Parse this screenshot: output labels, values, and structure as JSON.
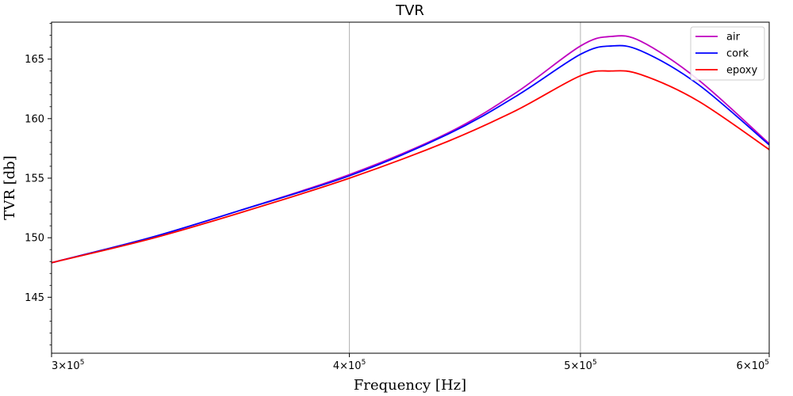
{
  "chart_data": {
    "type": "line",
    "title": "TVR",
    "xlabel": "Frequency [Hz]",
    "ylabel": "TVR [db]",
    "x_scale": "log",
    "xlim": [
      300000,
      600000
    ],
    "ylim": [
      140.3,
      168.1
    ],
    "xticks": [
      {
        "value": 300000,
        "mantissa": "3",
        "exp": "5"
      },
      {
        "value": 400000,
        "mantissa": "4",
        "exp": "5"
      },
      {
        "value": 500000,
        "mantissa": "5",
        "exp": "5"
      },
      {
        "value": 600000,
        "mantissa": "6",
        "exp": "5"
      }
    ],
    "yticks": [
      145,
      150,
      155,
      160,
      165
    ],
    "grid": "x-major",
    "legend": "top-right",
    "x": [
      300000,
      330000,
      360000,
      400000,
      440000,
      470000,
      500000,
      515000,
      530000,
      560000,
      600000
    ],
    "series": [
      {
        "name": "air",
        "color": "#bf00bf",
        "values": [
          147.9,
          150.0,
          152.3,
          155.3,
          158.8,
          162.2,
          166.1,
          166.9,
          166.5,
          163.3,
          157.9
        ]
      },
      {
        "name": "cork",
        "color": "#0000ff",
        "values": [
          147.9,
          150.0,
          152.3,
          155.2,
          158.7,
          161.9,
          165.4,
          166.1,
          165.7,
          162.9,
          157.8
        ]
      },
      {
        "name": "epoxy",
        "color": "#ff0000",
        "values": [
          147.9,
          149.9,
          152.1,
          155.0,
          158.1,
          160.7,
          163.6,
          164.0,
          163.7,
          161.5,
          157.4
        ]
      }
    ]
  }
}
